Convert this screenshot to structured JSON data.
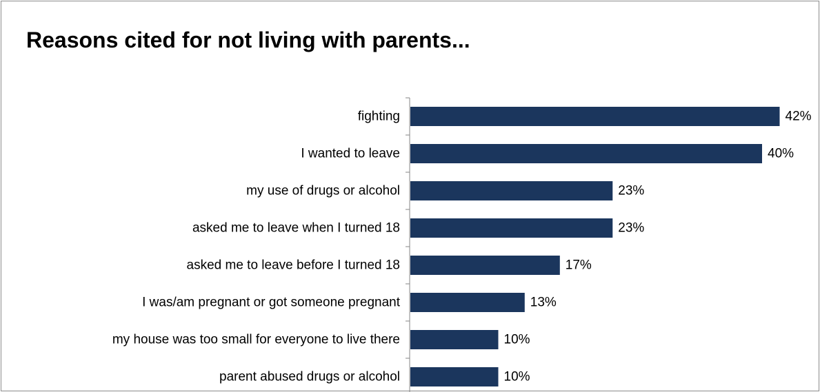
{
  "chart_data": {
    "type": "bar",
    "orientation": "horizontal",
    "title": "Reasons cited for not living with parents...",
    "categories": [
      "fighting",
      "I wanted to leave",
      "my use of drugs or alcohol",
      "asked me to leave when I turned 18",
      "asked me to leave before I turned 18",
      "I was/am pregnant or got someone pregnant",
      "my house was too small for everyone to live there",
      "parent abused drugs or alcohol"
    ],
    "values": [
      42,
      40,
      23,
      23,
      17,
      13,
      10,
      10
    ],
    "value_labels": [
      "42%",
      "40%",
      "23%",
      "23%",
      "17%",
      "13%",
      "10%",
      "10%"
    ],
    "xlim": [
      0,
      45
    ],
    "xlabel": "",
    "ylabel": "",
    "grid": false,
    "legend": "none",
    "bar_color": "#1b365d"
  }
}
